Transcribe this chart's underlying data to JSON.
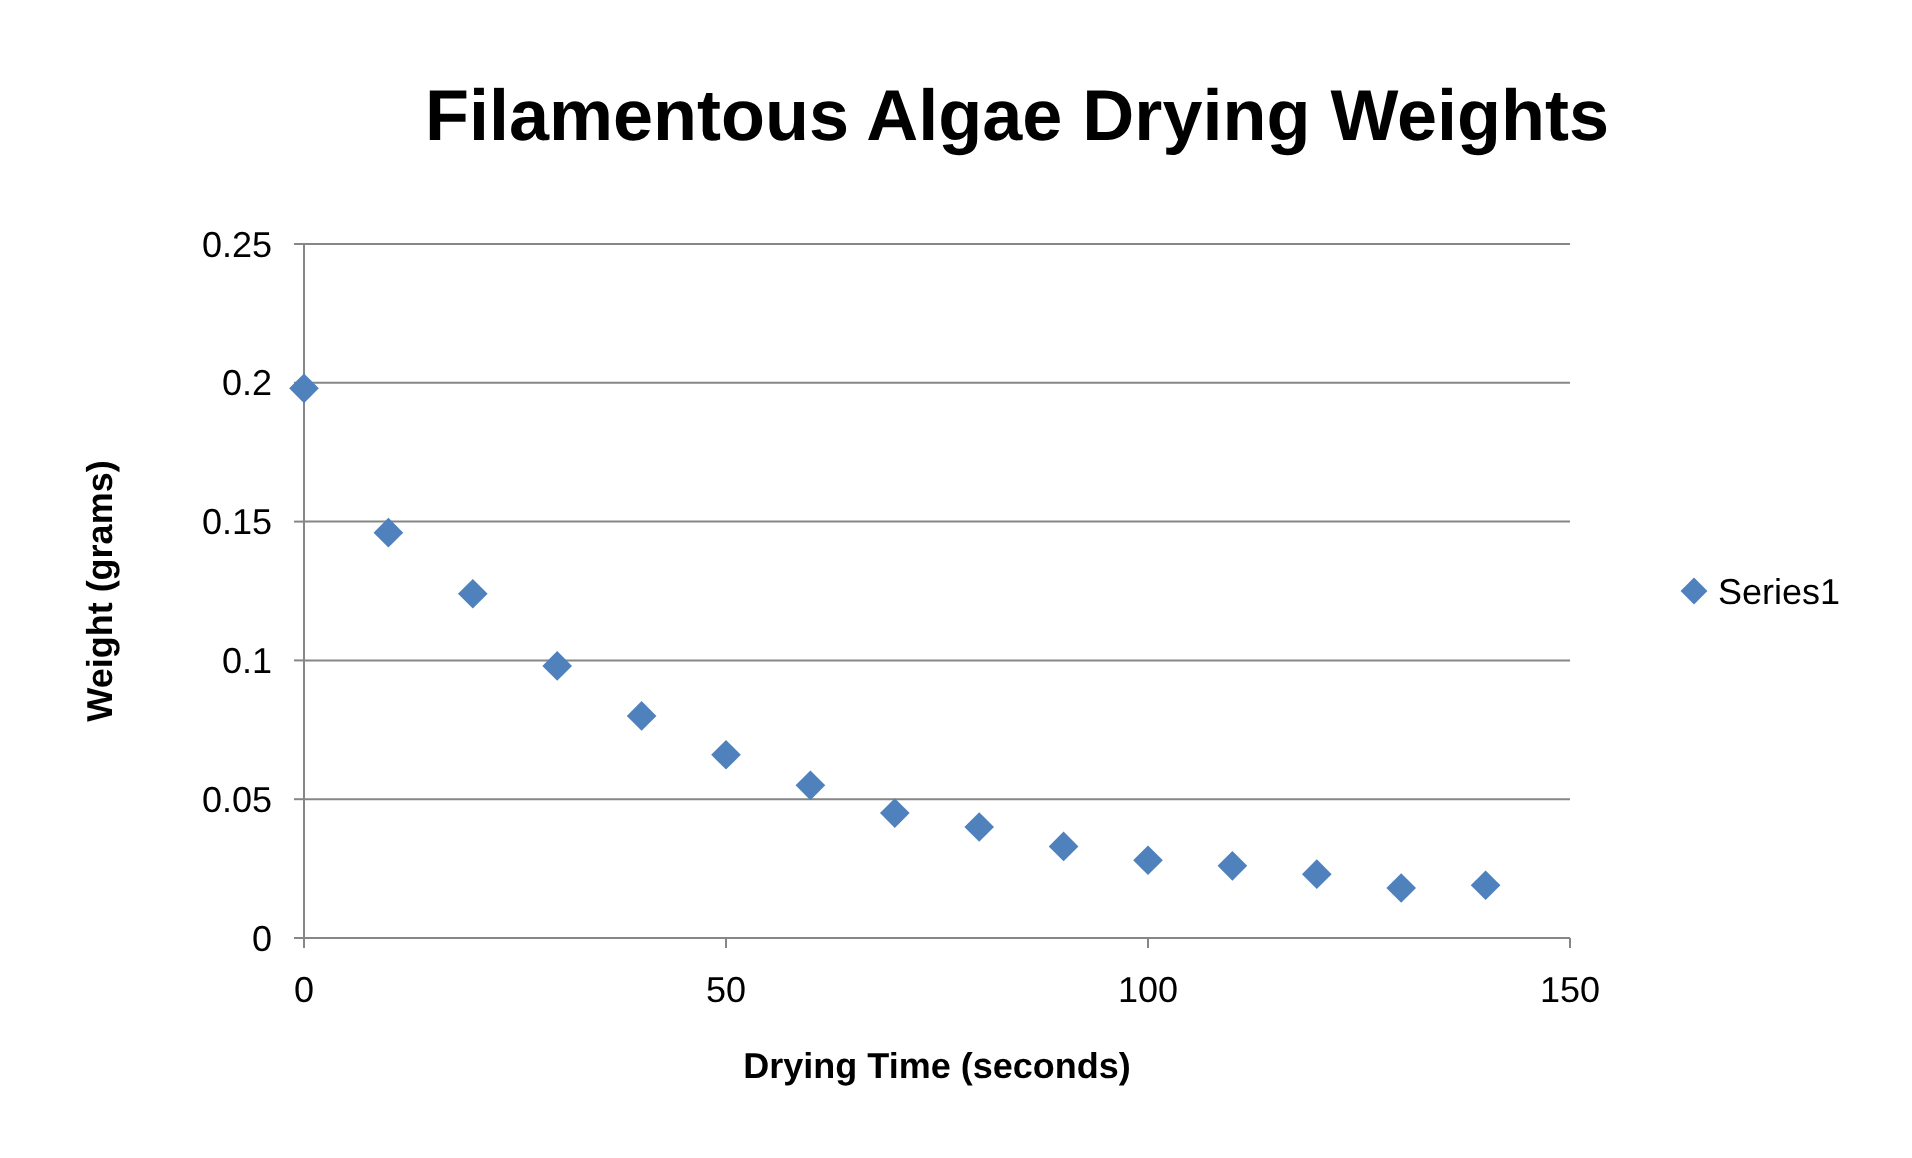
{
  "chart_data": {
    "type": "scatter",
    "title": "Filamentous Algae Drying Weights",
    "xlabel": "Drying Time (seconds)",
    "ylabel": "Weight (grams)",
    "x": [
      0,
      10,
      20,
      30,
      40,
      50,
      60,
      70,
      80,
      90,
      100,
      110,
      120,
      130,
      140
    ],
    "series": [
      {
        "name": "Series1",
        "color": "#4f81bd",
        "values": [
          0.198,
          0.146,
          0.124,
          0.098,
          0.08,
          0.066,
          0.055,
          0.045,
          0.04,
          0.033,
          0.028,
          0.026,
          0.023,
          0.018,
          0.019
        ]
      }
    ],
    "xlim": [
      0,
      150
    ],
    "xticks": [
      0,
      50,
      100,
      150
    ],
    "ylim": [
      0,
      0.25
    ],
    "yticks": [
      0,
      0.05,
      0.1,
      0.15,
      0.2,
      0.25
    ],
    "grid": "y",
    "legend": "right",
    "marker": "diamond"
  }
}
